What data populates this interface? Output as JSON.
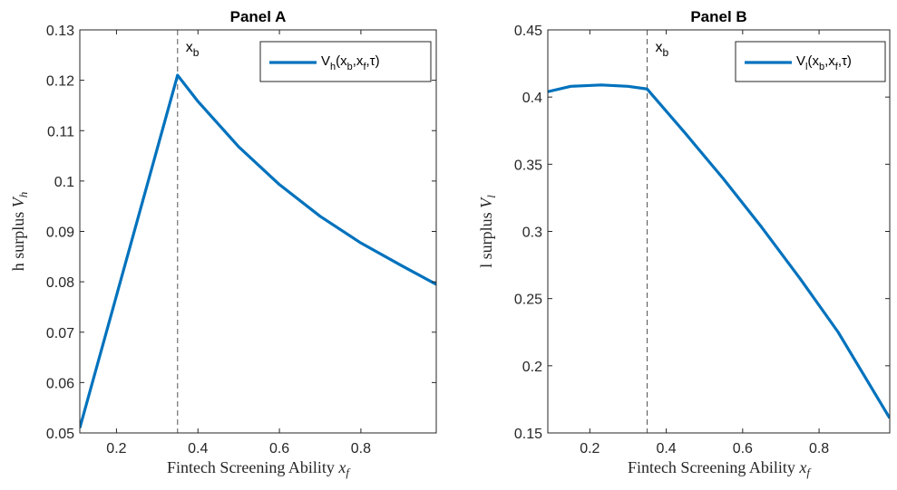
{
  "chart_data": [
    {
      "type": "line",
      "title": "Panel A",
      "xlabel": "Fintech Screening Ability",
      "xlabel_var": "x",
      "xlabel_sub": "f",
      "ylabel": "h surplus",
      "ylabel_var": "V",
      "ylabel_sub": "h",
      "xlim": [
        0.11,
        0.985
      ],
      "ylim": [
        0.05,
        0.13
      ],
      "xticks": [
        0.2,
        0.4,
        0.6,
        0.8
      ],
      "xtick_labels": [
        "0.2",
        "0.4",
        "0.6",
        "0.8"
      ],
      "yticks": [
        0.05,
        0.06,
        0.07,
        0.08,
        0.09,
        0.1,
        0.11,
        0.12,
        0.13
      ],
      "ytick_labels": [
        "0.05",
        "0.06",
        "0.07",
        "0.08",
        "0.09",
        "0.1",
        "0.11",
        "0.12",
        "0.13"
      ],
      "grid": false,
      "legend_position": "top-right",
      "annotation": {
        "text": "x",
        "sub": "b",
        "x": 0.35
      },
      "series": [
        {
          "name": "V_h(x_b,x_f,τ)",
          "legend_main": "V",
          "legend_sub": "h",
          "legend_args": [
            "(x",
            "b",
            ",x",
            "f",
            ",τ)"
          ],
          "color": "#0072BD",
          "x": [
            0.11,
            0.35,
            0.4,
            0.5,
            0.6,
            0.7,
            0.8,
            0.9,
            0.985
          ],
          "y": [
            0.051,
            0.121,
            0.1158,
            0.1068,
            0.0993,
            0.093,
            0.0877,
            0.0832,
            0.0795
          ]
        }
      ]
    },
    {
      "type": "line",
      "title": "Panel B",
      "xlabel": "Fintech Screening Ability",
      "xlabel_var": "x",
      "xlabel_sub": "f",
      "ylabel": "l surplus",
      "ylabel_var": "V",
      "ylabel_sub": "l",
      "xlim": [
        0.09,
        0.985
      ],
      "ylim": [
        0.15,
        0.45
      ],
      "xticks": [
        0.2,
        0.4,
        0.6,
        0.8
      ],
      "xtick_labels": [
        "0.2",
        "0.4",
        "0.6",
        "0.8"
      ],
      "yticks": [
        0.15,
        0.2,
        0.25,
        0.3,
        0.35,
        0.4,
        0.45
      ],
      "ytick_labels": [
        "0.15",
        "0.2",
        "0.25",
        "0.3",
        "0.35",
        "0.4",
        "0.45"
      ],
      "grid": false,
      "legend_position": "top-right",
      "annotation": {
        "text": "x",
        "sub": "b",
        "x": 0.35
      },
      "series": [
        {
          "name": "V_l(x_b,x_f,τ)",
          "legend_main": "V",
          "legend_sub": "l",
          "legend_args": [
            "(x",
            "b",
            ",x",
            "f",
            ",τ)"
          ],
          "color": "#0072BD",
          "x": [
            0.09,
            0.15,
            0.23,
            0.3,
            0.35,
            0.45,
            0.55,
            0.65,
            0.75,
            0.85,
            0.985
          ],
          "y": [
            0.404,
            0.408,
            0.409,
            0.408,
            0.406,
            0.373,
            0.339,
            0.303,
            0.265,
            0.225,
            0.161
          ]
        }
      ]
    }
  ]
}
